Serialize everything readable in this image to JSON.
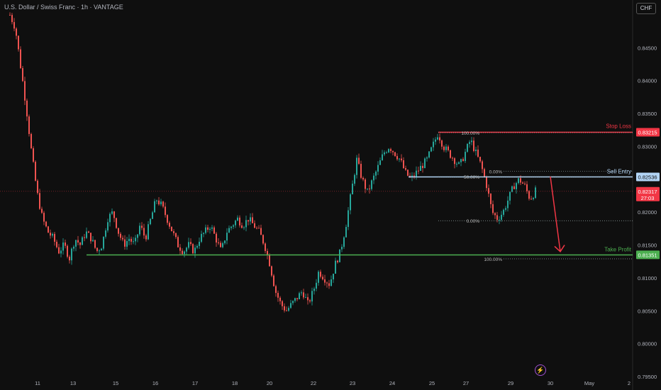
{
  "header": {
    "title": "U.S. Dollar / Swiss Franc · 1h · VANTAGE",
    "currency_button": "CHF"
  },
  "colors": {
    "background": "#0f0f0f",
    "up": "#26a69a",
    "down": "#ef5350",
    "stop_loss": "#f23645",
    "entry": "#b2d4f5",
    "take_profit": "#4caf50",
    "current": "#f23645"
  },
  "icons": {
    "lightning": "lightning-icon"
  },
  "chart_data": {
    "type": "candlestick",
    "symbol": "USDCHF",
    "timeframe": "1h",
    "ylim": [
      0.795,
      0.85
    ],
    "y_ticks": [
      "0.84500",
      "0.84000",
      "0.83500",
      "0.83000",
      "0.82000",
      "0.81500",
      "0.81000",
      "0.80500",
      "0.80000",
      "0.79500"
    ],
    "x_ticks": [
      "11",
      "13",
      "15",
      "16",
      "17",
      "18",
      "20",
      "22",
      "23",
      "24",
      "25",
      "27",
      "29",
      "30",
      "May",
      "2"
    ],
    "price_path": [
      [
        0,
        0.85
      ],
      [
        2,
        0.848
      ],
      [
        4,
        0.842
      ],
      [
        6,
        0.836
      ],
      [
        8,
        0.829
      ],
      [
        10,
        0.823
      ],
      [
        12,
        0.819
      ],
      [
        14,
        0.817
      ],
      [
        16,
        0.816
      ],
      [
        18,
        0.814
      ],
      [
        20,
        0.815
      ],
      [
        22,
        0.813
      ],
      [
        24,
        0.816
      ],
      [
        26,
        0.815
      ],
      [
        28,
        0.817
      ],
      [
        30,
        0.816
      ],
      [
        32,
        0.814
      ],
      [
        34,
        0.815
      ],
      [
        36,
        0.819
      ],
      [
        38,
        0.82
      ],
      [
        40,
        0.817
      ],
      [
        42,
        0.815
      ],
      [
        44,
        0.816
      ],
      [
        46,
        0.815
      ],
      [
        48,
        0.818
      ],
      [
        50,
        0.816
      ],
      [
        52,
        0.819
      ],
      [
        54,
        0.822
      ],
      [
        56,
        0.821
      ],
      [
        58,
        0.819
      ],
      [
        60,
        0.817
      ],
      [
        62,
        0.815
      ],
      [
        64,
        0.814
      ],
      [
        66,
        0.815
      ],
      [
        68,
        0.814
      ],
      [
        70,
        0.816
      ],
      [
        72,
        0.817
      ],
      [
        74,
        0.818
      ],
      [
        76,
        0.816
      ],
      [
        78,
        0.814
      ],
      [
        80,
        0.817
      ],
      [
        82,
        0.818
      ],
      [
        84,
        0.819
      ],
      [
        86,
        0.818
      ],
      [
        88,
        0.819
      ],
      [
        90,
        0.818
      ],
      [
        92,
        0.817
      ],
      [
        94,
        0.815
      ],
      [
        96,
        0.812
      ],
      [
        98,
        0.808
      ],
      [
        100,
        0.806
      ],
      [
        102,
        0.805
      ],
      [
        104,
        0.806
      ],
      [
        106,
        0.807
      ],
      [
        108,
        0.808
      ],
      [
        110,
        0.806
      ],
      [
        112,
        0.808
      ],
      [
        114,
        0.811
      ],
      [
        116,
        0.81
      ],
      [
        118,
        0.809
      ],
      [
        120,
        0.812
      ],
      [
        122,
        0.814
      ],
      [
        124,
        0.818
      ],
      [
        126,
        0.823
      ],
      [
        128,
        0.828
      ],
      [
        130,
        0.825
      ],
      [
        132,
        0.823
      ],
      [
        134,
        0.825
      ],
      [
        136,
        0.827
      ],
      [
        138,
        0.829
      ],
      [
        140,
        0.83
      ],
      [
        142,
        0.829
      ],
      [
        144,
        0.828
      ],
      [
        146,
        0.826
      ],
      [
        148,
        0.825
      ],
      [
        150,
        0.826
      ],
      [
        152,
        0.827
      ],
      [
        154,
        0.828
      ],
      [
        156,
        0.83
      ],
      [
        158,
        0.832
      ],
      [
        160,
        0.83
      ],
      [
        162,
        0.829
      ],
      [
        164,
        0.828
      ],
      [
        166,
        0.827
      ],
      [
        168,
        0.829
      ],
      [
        170,
        0.831
      ],
      [
        172,
        0.829
      ],
      [
        174,
        0.827
      ],
      [
        176,
        0.824
      ],
      [
        178,
        0.82
      ],
      [
        180,
        0.819
      ],
      [
        182,
        0.82
      ],
      [
        184,
        0.822
      ],
      [
        186,
        0.824
      ],
      [
        188,
        0.825
      ],
      [
        190,
        0.824
      ],
      [
        192,
        0.822
      ],
      [
        194,
        0.8232
      ]
    ],
    "levels": [
      {
        "name": "Stop Loss",
        "value": "0.83215",
        "color": "#f23645"
      },
      {
        "name": "Sell Entry",
        "value": "0.82536",
        "color": "#b2d4f5"
      },
      {
        "name": "Current Price",
        "value": "0.82317",
        "time": "27:03",
        "color": "#f23645"
      },
      {
        "name": "Take Profit",
        "value": "0.81351",
        "color": "#4caf50"
      }
    ],
    "fib_upper": [
      {
        "label": "100.00%",
        "y": 0.8321
      },
      {
        "label": "50.00%",
        "y": 0.8254
      },
      {
        "label": "0.00%",
        "y": 0.8187
      }
    ],
    "fib_lower": [
      {
        "label": "0.00%",
        "y": 0.8262
      },
      {
        "label": "100.00%",
        "y": 0.8129
      }
    ],
    "support_level": 0.8135
  }
}
